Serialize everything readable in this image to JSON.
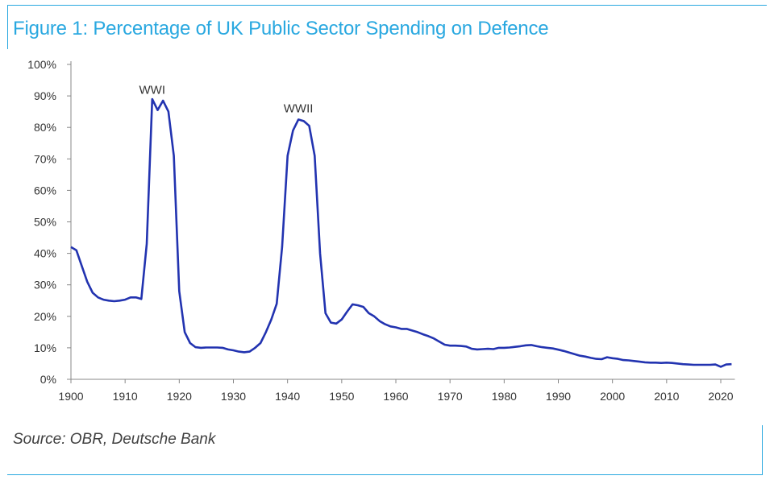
{
  "chart_data": {
    "type": "line",
    "title": "Figure 1: Percentage of UK Public Sector Spending on Defence",
    "source": "Source: OBR, Deutsche Bank",
    "xlabel": "",
    "ylabel": "",
    "xlim": [
      1900,
      2022
    ],
    "ylim": [
      0,
      100
    ],
    "grid": false,
    "line_color": "#2233b0",
    "title_color": "#29a8e0",
    "x_ticks": [
      1900,
      1910,
      1920,
      1930,
      1940,
      1950,
      1960,
      1970,
      1980,
      1990,
      2000,
      2010,
      2020
    ],
    "x_tick_labels": [
      "1900",
      "1910",
      "1920",
      "1930",
      "1940",
      "1950",
      "1960",
      "1970",
      "1980",
      "1990",
      "2000",
      "2010",
      "2020"
    ],
    "y_ticks": [
      0,
      10,
      20,
      30,
      40,
      50,
      60,
      70,
      80,
      90,
      100
    ],
    "y_tick_labels": [
      "0%",
      "10%",
      "20%",
      "30%",
      "40%",
      "50%",
      "60%",
      "70%",
      "80%",
      "90%",
      "100%"
    ],
    "annotations": [
      {
        "text": "WWI",
        "x": 1915,
        "y": 92
      },
      {
        "text": "WWII",
        "x": 1942,
        "y": 86
      }
    ],
    "series": [
      {
        "x": [
          1900,
          1901,
          1902,
          1903,
          1904,
          1905,
          1906,
          1907,
          1908,
          1909,
          1910,
          1911,
          1912,
          1913,
          1914,
          1915,
          1916,
          1917,
          1918,
          1919,
          1920,
          1921,
          1922,
          1923,
          1924,
          1925,
          1926,
          1927,
          1928,
          1929,
          1930,
          1931,
          1932,
          1933,
          1934,
          1935,
          1936,
          1937,
          1938,
          1939,
          1940,
          1941,
          1942,
          1943,
          1944,
          1945,
          1946,
          1947,
          1948,
          1949,
          1950,
          1951,
          1952,
          1953,
          1954,
          1955,
          1956,
          1957,
          1958,
          1959,
          1960,
          1961,
          1962,
          1963,
          1964,
          1965,
          1966,
          1967,
          1968,
          1969,
          1970,
          1971,
          1972,
          1973,
          1974,
          1975,
          1976,
          1977,
          1978,
          1979,
          1980,
          1981,
          1982,
          1983,
          1984,
          1985,
          1986,
          1987,
          1988,
          1989,
          1990,
          1991,
          1992,
          1993,
          1994,
          1995,
          1996,
          1997,
          1998,
          1999,
          2000,
          2001,
          2002,
          2003,
          2004,
          2005,
          2006,
          2007,
          2008,
          2009,
          2010,
          2011,
          2012,
          2013,
          2014,
          2015,
          2016,
          2017,
          2018,
          2019,
          2020,
          2021,
          2022
        ],
        "y": [
          42,
          41,
          36,
          31,
          27.5,
          26,
          25.3,
          25,
          24.8,
          25,
          25.3,
          26,
          26,
          25.5,
          43,
          89,
          85.5,
          88.5,
          85,
          71,
          28,
          15,
          11.5,
          10.2,
          10,
          10.1,
          10.1,
          10.1,
          10,
          9.5,
          9.2,
          8.8,
          8.6,
          8.8,
          10,
          11.5,
          15,
          19,
          24,
          42,
          71,
          79,
          82.5,
          82,
          80.5,
          71,
          40,
          21,
          18,
          17.7,
          19,
          21.5,
          23.8,
          23.5,
          23,
          21,
          20,
          18.5,
          17.5,
          16.8,
          16.5,
          16,
          16,
          15.5,
          15,
          14.3,
          13.7,
          13,
          12,
          11,
          10.7,
          10.7,
          10.6,
          10.4,
          9.7,
          9.5,
          9.6,
          9.7,
          9.6,
          10,
          10,
          10.1,
          10.3,
          10.5,
          10.8,
          10.9,
          10.5,
          10.2,
          10,
          9.8,
          9.4,
          9,
          8.5,
          8,
          7.5,
          7.2,
          6.8,
          6.5,
          6.4,
          7,
          6.7,
          6.5,
          6.1,
          6,
          5.8,
          5.6,
          5.4,
          5.3,
          5.3,
          5.2,
          5.3,
          5.2,
          5,
          4.8,
          4.7,
          4.6,
          4.6,
          4.6,
          4.6,
          4.7,
          4,
          4.7,
          4.8
        ]
      }
    ]
  }
}
